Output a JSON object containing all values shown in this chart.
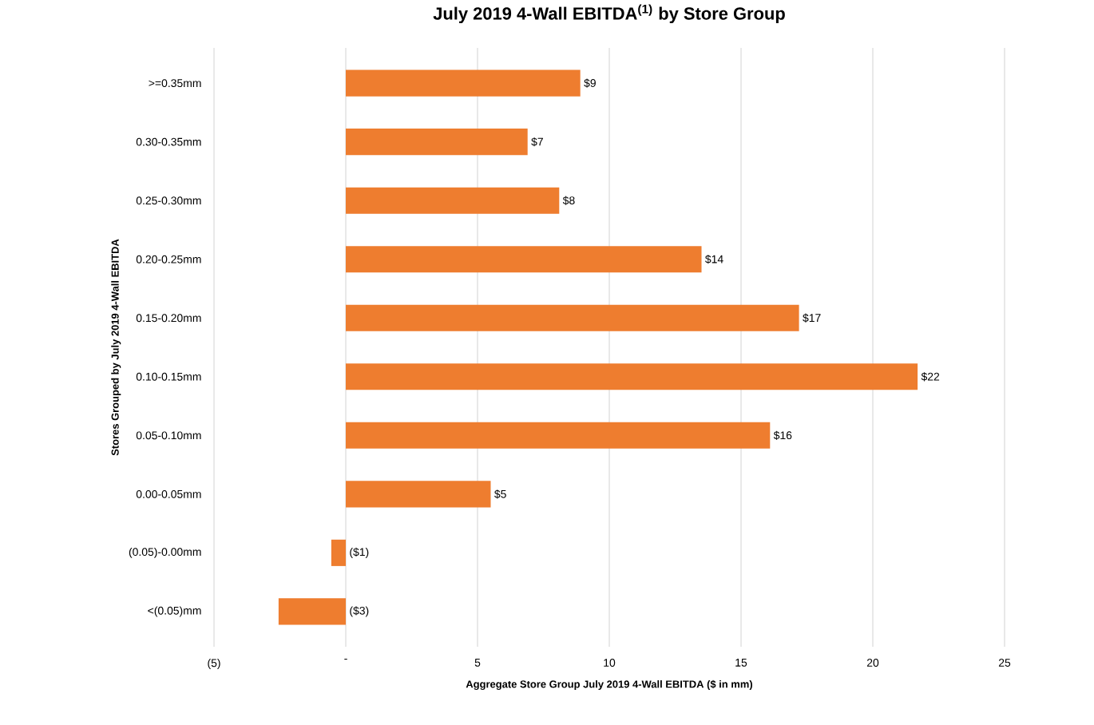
{
  "chart_data": {
    "type": "bar",
    "orientation": "horizontal",
    "title": "July 2019 4-Wall EBITDA$^{(1)}$ by Store Group",
    "xlabel": "Aggregate Store Group July 2019 4-Wall EBITDA ($ in mm)",
    "ylabel": "Stores Grouped by July 2019 4-Wall EBITDA",
    "categories": [
      ">=0.35mm",
      "0.30-0.35mm",
      "0.25-0.30mm",
      "0.20-0.25mm",
      "0.15-0.20mm",
      "0.10-0.15mm",
      "0.05-0.10mm",
      "0.00-0.05mm",
      "(0.05)-0.00mm",
      "<(0.05)mm"
    ],
    "values": [
      8.9,
      6.9,
      8.1,
      13.5,
      17.2,
      21.7,
      16.1,
      5.5,
      -0.55,
      -2.55
    ],
    "value_labels": [
      "$9",
      "$7",
      "$8",
      "$14",
      "$17",
      "$22",
      "$16",
      "$5",
      "($1)",
      "($3)"
    ],
    "color": "#ee7d2f",
    "xlim": [
      -5,
      25
    ],
    "xticks": [
      {
        "value": -5,
        "label": "(5)"
      },
      {
        "value": 0,
        "label": "-"
      },
      5,
      10,
      15,
      20,
      25
    ],
    "grid": "x"
  }
}
